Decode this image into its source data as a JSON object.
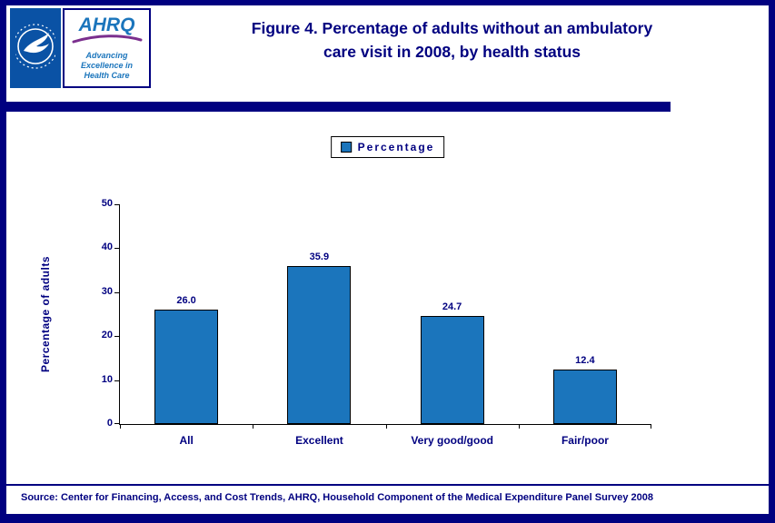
{
  "header": {
    "title_line1": "Figure 4. Percentage of adults without an ambulatory",
    "title_line2": "care visit in 2008, by health status",
    "ahrq_logo": {
      "acronym": "AHRQ",
      "tagline_line1": "Advancing",
      "tagline_line2": "Excellence in",
      "tagline_line3": "Health Care"
    }
  },
  "legend": {
    "label": "Percentage"
  },
  "chart_data": {
    "type": "bar",
    "title": "Figure 4. Percentage of adults without an ambulatory care visit in 2008, by health status",
    "categories": [
      "All",
      "Excellent",
      "Very good/good",
      "Fair/poor"
    ],
    "series": [
      {
        "name": "Percentage",
        "values": [
          26.0,
          35.9,
          24.7,
          12.4
        ],
        "labels": [
          "26.0",
          "35.9",
          "24.7",
          "12.4"
        ]
      }
    ],
    "xlabel": "",
    "ylabel": "Percentage of adults",
    "ylim": [
      0,
      50
    ],
    "yticks": [
      0,
      10,
      20,
      30,
      40,
      50
    ],
    "grid": false,
    "legend_position": "top-center"
  },
  "footer": {
    "source": "Source: Center for Financing, Access, and Cost Trends, AHRQ, Household Component of the Medical Expenditure Panel Survey 2008"
  },
  "colors": {
    "navy": "#000080",
    "bar": "#1b75bc",
    "axis": "#000000",
    "swoosh_purple": "#7b2f8e"
  }
}
